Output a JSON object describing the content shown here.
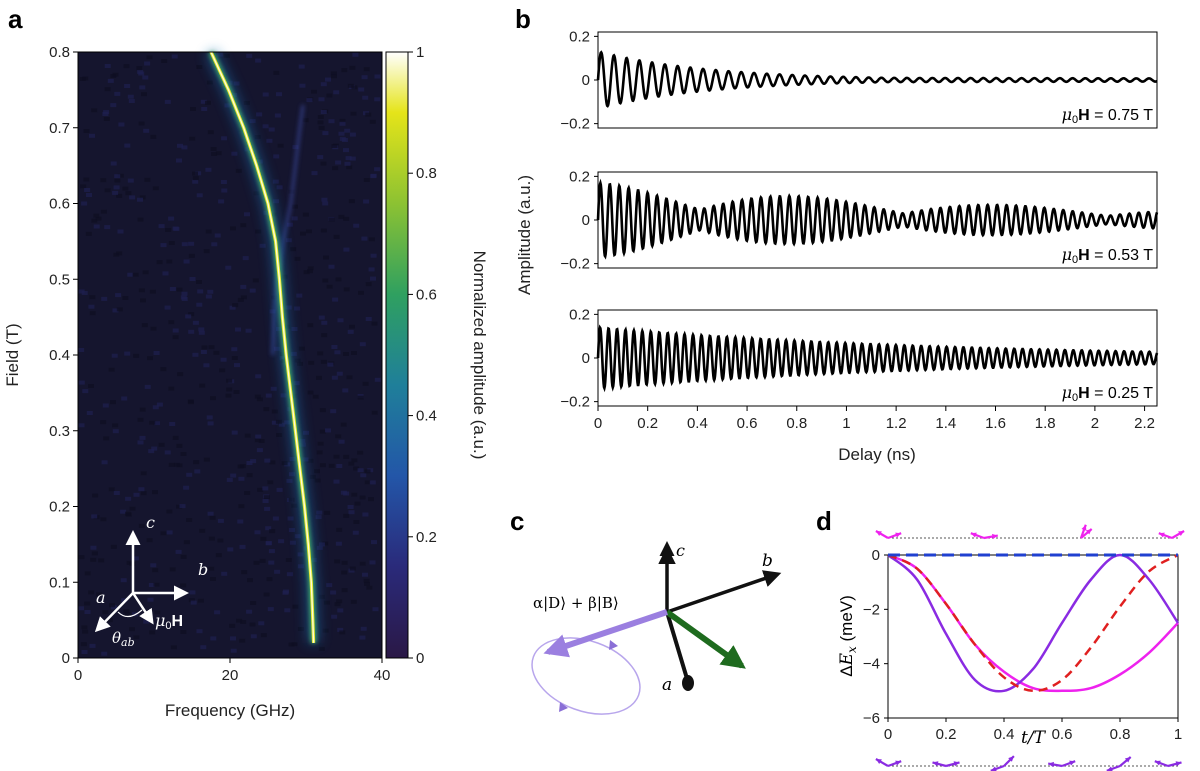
{
  "panels": {
    "a": "a",
    "b": "b",
    "c": "c",
    "d": "d"
  },
  "chart_data": [
    {
      "id": "a",
      "type": "heatmap",
      "xlabel": "Frequency (GHz)",
      "ylabel": "Field (T)",
      "xlim": [
        0,
        40
      ],
      "ylim": [
        0,
        0.8
      ],
      "xticks": [
        "0",
        "20",
        "40"
      ],
      "yticks": [
        "0",
        "0.1",
        "0.2",
        "0.3",
        "0.4",
        "0.5",
        "0.6",
        "0.7",
        "0.8"
      ],
      "colorbar": {
        "label": "Normalized amplitude (a.u.)",
        "range": [
          0,
          1
        ],
        "ticks": [
          "0",
          "0.2",
          "0.4",
          "0.6",
          "0.8",
          "1"
        ],
        "colormap": [
          "#30123b",
          "#2b2f8f",
          "#1f5fb0",
          "#1f8a8a",
          "#3aa54a",
          "#9bc62c",
          "#e5e419",
          "#ffffff"
        ]
      },
      "ridge_main": {
        "field": [
          0.02,
          0.05,
          0.1,
          0.15,
          0.2,
          0.25,
          0.3,
          0.35,
          0.4,
          0.45,
          0.5,
          0.55,
          0.6,
          0.65,
          0.7,
          0.75,
          0.8
        ],
        "frequency": [
          31.0,
          30.9,
          30.7,
          30.3,
          29.8,
          29.2,
          28.6,
          28.0,
          27.4,
          26.9,
          26.5,
          26.0,
          25.0,
          23.5,
          21.8,
          19.8,
          17.5
        ]
      },
      "ridge_faint": {
        "field": [
          0.4,
          0.45,
          0.5,
          0.52,
          0.55,
          0.6,
          0.65,
          0.7,
          0.73
        ],
        "frequency": [
          25.6,
          25.8,
          26.2,
          26.6,
          27.0,
          28.0,
          28.6,
          29.2,
          29.6
        ]
      },
      "inset_axes": {
        "labels": [
          "c",
          "b",
          "a",
          "μ0H",
          "θab"
        ]
      }
    },
    {
      "id": "b",
      "type": "line",
      "xlabel": "Delay (ns)",
      "ylabel": "Amplitude (a.u.)",
      "xlim": [
        0,
        2.25
      ],
      "xticks": [
        "0",
        "0.2",
        "0.4",
        "0.6",
        "0.8",
        "1",
        "1.2",
        "1.4",
        "1.6",
        "1.8",
        "2",
        "2.2"
      ],
      "yticks": [
        "0.2",
        "0",
        "−0.2"
      ],
      "ylim": [
        -0.22,
        0.22
      ],
      "series": [
        {
          "name": "μ0H = 0.75 T",
          "field_T": 0.75,
          "amplitude": 0.13,
          "decay_ns": 0.45,
          "beat_period_ns": 0,
          "freq_GHz": 19.5
        },
        {
          "name": "μ0H = 0.53 T",
          "field_T": 0.53,
          "amplitude": 0.17,
          "decay_ns": 1.8,
          "beat_period_ns": 0.82,
          "freq_GHz": 26.3
        },
        {
          "name": "μ0H = 0.25 T",
          "field_T": 0.25,
          "amplitude": 0.14,
          "decay_ns": 1.4,
          "beat_period_ns": 0,
          "freq_GHz": 29.4
        }
      ]
    },
    {
      "id": "c",
      "type": "diagram",
      "labels": {
        "c": "c",
        "b": "b",
        "a": "a",
        "state": "α|D⟩ + β|B⟩"
      },
      "colors": {
        "state_vector": "#9b7fe0",
        "green_vector": "#1e6b1e",
        "axes": "#111111"
      }
    },
    {
      "id": "d",
      "type": "line",
      "xlabel": "t/T",
      "ylabel": "ΔEx (meV)",
      "xlim": [
        0,
        1
      ],
      "ylim": [
        -6,
        0
      ],
      "xticks": [
        "0",
        "0.2",
        "0.4",
        "0.6",
        "0.8",
        "1"
      ],
      "yticks": [
        "0",
        "−2",
        "−4",
        "−6"
      ],
      "x": [
        0,
        0.1,
        0.2,
        0.3,
        0.4,
        0.5,
        0.6,
        0.7,
        0.8,
        0.9,
        1.0
      ],
      "series": [
        {
          "color": "#2040d0",
          "style": "dashed",
          "values": [
            0,
            0,
            0,
            0,
            0,
            0,
            0,
            0,
            0,
            0,
            0
          ]
        },
        {
          "color": "#e02020",
          "style": "dashed",
          "values": [
            0,
            -0.5,
            -1.8,
            -3.3,
            -4.5,
            -5.0,
            -4.6,
            -3.4,
            -1.9,
            -0.6,
            0
          ]
        },
        {
          "color": "#8a2be2",
          "style": "solid",
          "values": [
            0,
            -0.9,
            -2.9,
            -4.6,
            -5.0,
            -4.2,
            -2.5,
            -0.9,
            0,
            -0.9,
            -2.5
          ]
        },
        {
          "color": "#ee22ee",
          "style": "solid",
          "values": [
            0,
            -0.5,
            -1.8,
            -3.3,
            -4.3,
            -4.9,
            -5.0,
            -4.9,
            -4.4,
            -3.6,
            -2.5
          ]
        }
      ],
      "colors": {
        "top_arrows": "#ee22ee",
        "bottom_arrows": "#8a2be2"
      }
    }
  ]
}
